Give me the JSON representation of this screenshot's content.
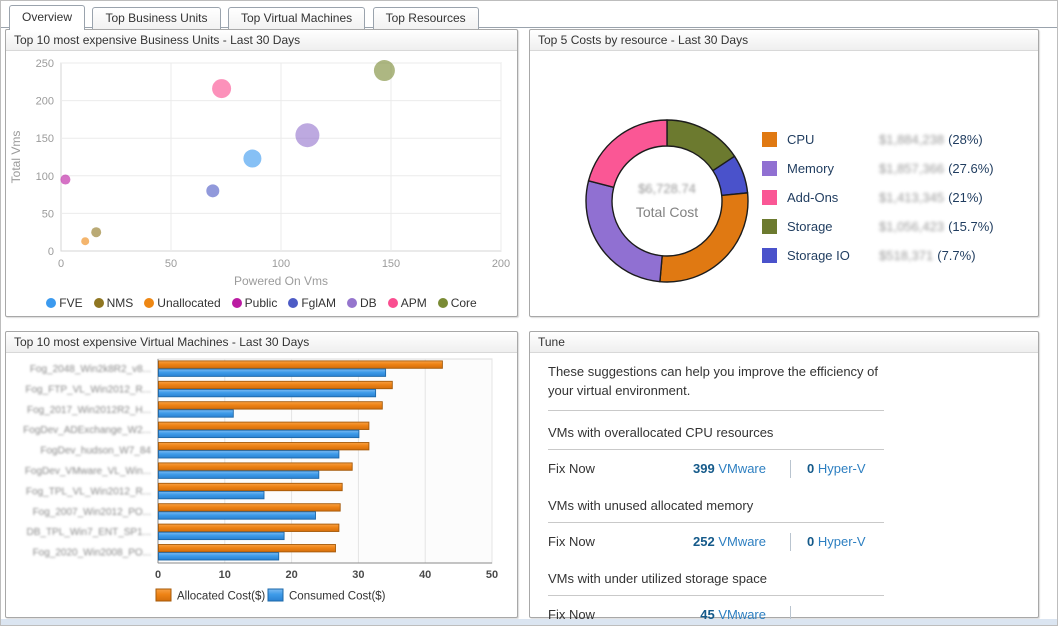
{
  "tabs": {
    "items": [
      {
        "label": "Overview"
      },
      {
        "label": "Top Business Units"
      },
      {
        "label": "Top Virtual Machines"
      },
      {
        "label": "Top Resources"
      }
    ],
    "active_label": "Overview"
  },
  "panels": {
    "business_units": {
      "title": "Top 10 most expensive Business Units - Last 30 Days"
    },
    "costs_by_resource": {
      "title": "Top 5 Costs by resource - Last 30 Days"
    },
    "virtual_machines": {
      "title": "Top 10 most expensive Virtual Machines - Last 30 Days"
    },
    "tune": {
      "title": "Tune",
      "intro": "These suggestions can help you improve the efficiency of your virtual environment.",
      "sections": [
        {
          "title": "VMs with overallocated CPU resources",
          "action": "Fix Now",
          "vmware_count": "399",
          "vmware_label": "VMware",
          "hyperv_count": "0",
          "hyperv_label": "Hyper-V"
        },
        {
          "title": "VMs with unused allocated memory",
          "action": "Fix Now",
          "vmware_count": "252",
          "vmware_label": "VMware",
          "hyperv_count": "0",
          "hyperv_label": "Hyper-V"
        },
        {
          "title": "VMs with under utilized storage space",
          "action": "Fix Now",
          "vmware_count": "45",
          "vmware_label": "VMware",
          "hyperv_count": "",
          "hyperv_label": ""
        }
      ]
    }
  },
  "chart_data": [
    {
      "id": "business_units_bubble",
      "type": "scatter",
      "title": "Top 10 most expensive Business Units - Last 30 Days",
      "xlabel": "Powered On Vms",
      "ylabel": "Total Vms",
      "xlim": [
        0,
        200
      ],
      "ylim": [
        0,
        250
      ],
      "xticks": [
        0,
        50,
        100,
        150,
        200
      ],
      "yticks": [
        0,
        50,
        100,
        150,
        200,
        250
      ],
      "grid": true,
      "legend_position": "bottom",
      "points": [
        {
          "name": "FVE",
          "x": 87,
          "y": 123,
          "r": 9,
          "color": "#3B9AEF"
        },
        {
          "name": "NMS",
          "x": 16,
          "y": 25,
          "r": 5,
          "color": "#8F7621"
        },
        {
          "name": "Unallocated",
          "x": 11,
          "y": 13,
          "r": 4,
          "color": "#EE8713"
        },
        {
          "name": "Public",
          "x": 2,
          "y": 95,
          "r": 5,
          "color": "#BB1BA2"
        },
        {
          "name": "FglAM",
          "x": 69,
          "y": 80,
          "r": 6.5,
          "color": "#4D5BC5"
        },
        {
          "name": "DB",
          "x": 112,
          "y": 154,
          "r": 12,
          "color": "#9575CD"
        },
        {
          "name": "APM",
          "x": 73,
          "y": 216,
          "r": 9.5,
          "color": "#FA4E90"
        },
        {
          "name": "Core",
          "x": 147,
          "y": 240,
          "r": 10.5,
          "color": "#7A8B35"
        }
      ]
    },
    {
      "id": "costs_donut",
      "type": "pie",
      "donut": true,
      "title": "Top 5 Costs by resource - Last 30 Days",
      "center_value": "$6,728.74",
      "center_label": "Total Cost",
      "values_blurred": true,
      "clockwise_from_top_order": [
        "Storage",
        "Storage IO",
        "CPU",
        "Memory",
        "Add-Ons"
      ],
      "slices": [
        {
          "name": "CPU",
          "value": "$1,884,238",
          "pct": 28,
          "pct_label": "(28%)",
          "color": "#E07912"
        },
        {
          "name": "Memory",
          "value": "$1,857,366",
          "pct": 27.6,
          "pct_label": "(27.6%)",
          "color": "#9070D2"
        },
        {
          "name": "Add-Ons",
          "value": "$1,413,345",
          "pct": 21,
          "pct_label": "(21%)",
          "color": "#FA5795"
        },
        {
          "name": "Storage",
          "value": "$1,056,423",
          "pct": 15.7,
          "pct_label": "(15.7%)",
          "color": "#6C7A2F"
        },
        {
          "name": "Storage IO",
          "value": "$518,371",
          "pct": 7.7,
          "pct_label": "(7.7%)",
          "color": "#4A52CB"
        }
      ]
    },
    {
      "id": "vm_bars",
      "type": "bar",
      "orientation": "horizontal",
      "title": "Top 10 most expensive Virtual Machines - Last 30 Days",
      "xlim": [
        0,
        50
      ],
      "xticks": [
        0,
        10,
        20,
        30,
        40,
        50
      ],
      "categories_blurred": true,
      "categories": [
        "Fog_2048_Win2k8R2_v8...",
        "Fog_FTP_VL_Win2012_R...",
        "Fog_2017_Win2012R2_H...",
        "FogDev_ADExchange_W2...",
        "FogDev_hudson_W7_84",
        "FogDev_VMware_VL_Win...",
        "Fog_TPL_VL_Win2012_R...",
        "Fog_2007_Win2012_PO...",
        "DB_TPL_Win7_ENT_SP1...",
        "Fog_2020_Win2008_PO..."
      ],
      "series": [
        {
          "name": "Allocated Cost($)",
          "color": "#EE8618",
          "values": [
            42.5,
            35,
            33.5,
            31.5,
            31.5,
            29,
            27.5,
            27.2,
            27,
            26.5
          ]
        },
        {
          "name": "Consumed Cost($)",
          "color": "#3E9BE9",
          "values": [
            34,
            32.5,
            11.2,
            30,
            27,
            24,
            15.8,
            23.5,
            18.8,
            18
          ]
        }
      ]
    }
  ]
}
